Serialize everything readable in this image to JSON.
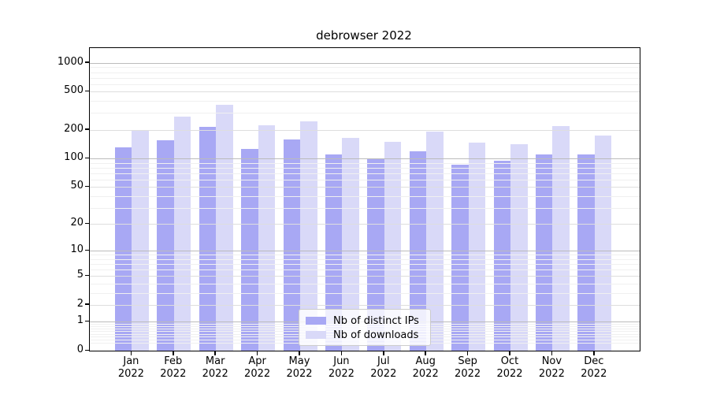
{
  "chart_data": {
    "type": "bar",
    "title": "debrowser 2022",
    "categories": [
      "Jan 2022",
      "Feb 2022",
      "Mar 2022",
      "Apr 2022",
      "May 2022",
      "Jun 2022",
      "Jul 2022",
      "Aug 2022",
      "Sep 2022",
      "Oct 2022",
      "Nov 2022",
      "Dec 2022"
    ],
    "series": [
      {
        "name": "Nb of distinct IPs",
        "color": "#a8a8f4",
        "values": [
          130,
          156,
          216,
          125,
          159,
          110,
          98,
          118,
          86,
          95,
          111,
          111
        ]
      },
      {
        "name": "Nb of downloads",
        "color": "#d9d9f8",
        "values": [
          199,
          275,
          366,
          225,
          246,
          164,
          149,
          190,
          147,
          140,
          219,
          174
        ]
      }
    ],
    "xlabel": "",
    "ylabel": "",
    "yscale": "log1p",
    "ylim": [
      0,
      1430
    ],
    "yticks": [
      1000,
      500,
      200,
      100,
      50,
      20,
      10,
      5,
      2,
      1,
      0
    ],
    "grid": true,
    "legend_position": "lower-center",
    "colors": {
      "axis": "#000000",
      "grid_strong": "#bbbbbb",
      "grid_major": "#dedede",
      "grid_minor": "#f0f0f0",
      "background": "#ffffff"
    }
  }
}
